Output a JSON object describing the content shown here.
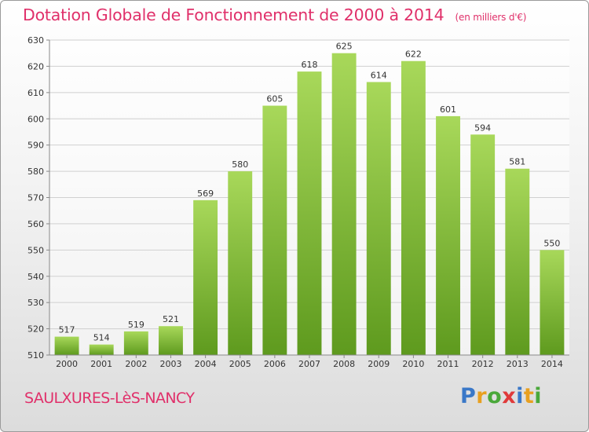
{
  "chart_data": {
    "type": "bar",
    "title": "Dotation Globale de Fonctionnement de 2000 à 2014",
    "subtitle": "(en milliers d'€)",
    "categories": [
      "2000",
      "2001",
      "2002",
      "2003",
      "2004",
      "2005",
      "2006",
      "2007",
      "2008",
      "2009",
      "2010",
      "2011",
      "2012",
      "2013",
      "2014"
    ],
    "values": [
      517,
      514,
      519,
      521,
      569,
      580,
      605,
      618,
      625,
      614,
      622,
      601,
      594,
      581,
      550
    ],
    "ylim": [
      510,
      630
    ],
    "yticks": [
      510,
      520,
      530,
      540,
      550,
      560,
      570,
      580,
      590,
      600,
      610,
      620,
      630
    ],
    "grid": true,
    "colors": {
      "bar_top": "#a8d85a",
      "bar_bottom": "#5e9a1e",
      "title": "#e0306a"
    }
  },
  "footer": {
    "city": "SAULXURES-LèS-NANCY",
    "logo_letters": [
      "P",
      "r",
      "o",
      "x",
      "i",
      "t",
      "i"
    ],
    "logo_colors": [
      "#3a78c8",
      "#e8a020",
      "#4aa83a",
      "#e03a3a",
      "#3a78c8",
      "#e8a020",
      "#4aa83a"
    ]
  }
}
